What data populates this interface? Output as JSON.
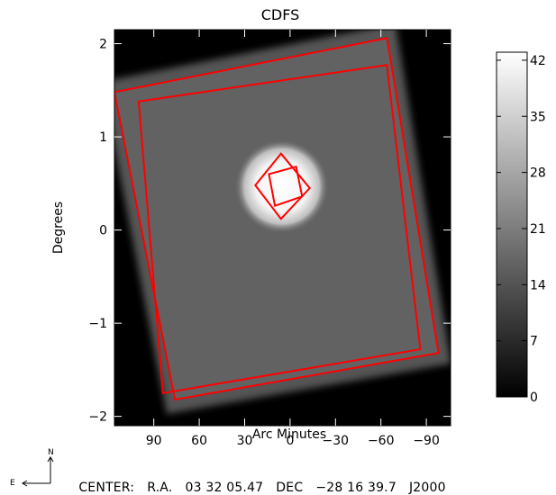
{
  "chart_data": {
    "type": "heatmap",
    "title": "CDFS",
    "xlabel": "Arc Minutes",
    "ylabel": "Degrees",
    "x_ticks": [
      "90",
      "60",
      "30",
      "0",
      "−30",
      "−60",
      "−90"
    ],
    "x_tick_values": [
      90,
      60,
      30,
      0,
      -30,
      -60,
      -90
    ],
    "y_ticks": [
      "2",
      "1",
      "0",
      "−1",
      "−2"
    ],
    "y_tick_values": [
      2,
      1,
      0,
      -1,
      -2
    ],
    "xlim": [
      116,
      -106
    ],
    "ylim": [
      -2.1,
      2.15
    ],
    "colorbar": {
      "ticks": [
        "42",
        "35",
        "28",
        "21",
        "14",
        "7",
        "0"
      ],
      "tick_values": [
        42,
        35,
        28,
        21,
        14,
        7,
        0
      ],
      "range": [
        0,
        43
      ]
    },
    "regions": {
      "outer_footprint_level": 11,
      "center_level": 42,
      "gray_main_level": 13
    },
    "footprints": [
      {
        "name": "outer-square",
        "corners": [
          [
            116,
            1.48
          ],
          [
            -64,
            2.06
          ],
          [
            -98,
            -1.32
          ],
          [
            76,
            -1.82
          ]
        ]
      },
      {
        "name": "inner-square",
        "corners": [
          [
            100,
            1.38
          ],
          [
            -64,
            1.77
          ],
          [
            -86,
            -1.28
          ],
          [
            84,
            -1.75
          ]
        ]
      },
      {
        "name": "diamond",
        "corners": [
          [
            6,
            0.82
          ],
          [
            -13,
            0.45
          ],
          [
            6,
            0.12
          ],
          [
            23,
            0.48
          ]
        ]
      },
      {
        "name": "small-square",
        "corners": [
          [
            14,
            0.6
          ],
          [
            -4,
            0.68
          ],
          [
            -8,
            0.36
          ],
          [
            10,
            0.26
          ]
        ]
      }
    ],
    "footprint_color": "#ff0000"
  },
  "footer": {
    "compass_north": "N",
    "compass_east": "E",
    "center_label": "CENTER:",
    "ra_label": "R.A.",
    "ra_value": "03 32 05.47",
    "dec_label": "DEC",
    "dec_value": "−28 16 39.7",
    "epoch": "J2000"
  }
}
